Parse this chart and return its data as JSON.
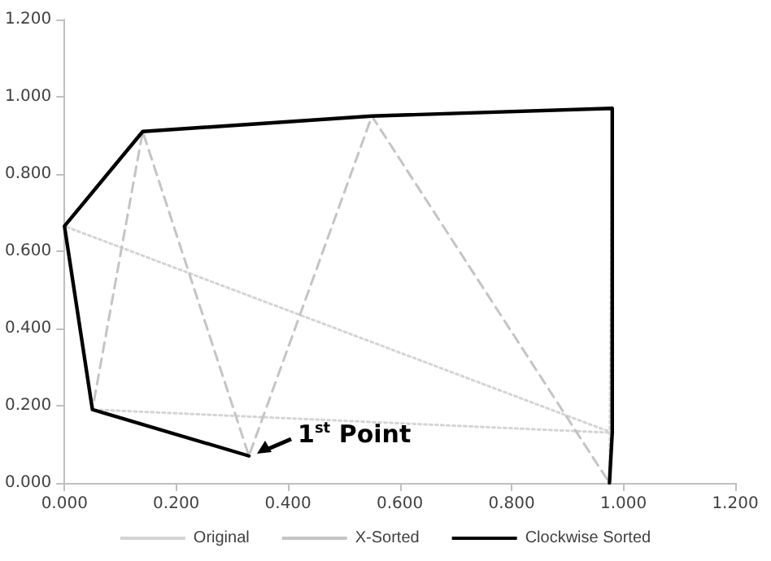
{
  "chart_data": {
    "type": "line",
    "marker": "none",
    "grid": false,
    "legend": "bottom",
    "xlim": [
      0,
      1.2
    ],
    "ylim": [
      0,
      1.2
    ],
    "xticks": [
      {
        "value": 0,
        "label": "0.000"
      },
      {
        "value": 0.2,
        "label": "0.200"
      },
      {
        "value": 0.4,
        "label": "0.400"
      },
      {
        "value": 0.6,
        "label": "0.600"
      },
      {
        "value": 0.8,
        "label": "0.800"
      },
      {
        "value": 1.0,
        "label": "1.000"
      },
      {
        "value": 1.2,
        "label": "1.200"
      }
    ],
    "yticks": [
      {
        "value": 0,
        "label": "0.000"
      },
      {
        "value": 0.2,
        "label": "0.200"
      },
      {
        "value": 0.4,
        "label": "0.400"
      },
      {
        "value": 0.6,
        "label": "0.600"
      },
      {
        "value": 0.8,
        "label": "0.800"
      },
      {
        "value": 1.0,
        "label": "1.000"
      },
      {
        "value": 1.2,
        "label": "1.200"
      }
    ],
    "series": [
      {
        "name": "Original",
        "color": "#d4d4d4",
        "line_style": "dotted",
        "x": [
          0.33,
          0.05,
          0.98,
          0.0,
          0.14,
          0.55,
          0.98,
          0.975
        ],
        "values": [
          0.07,
          0.19,
          0.13,
          0.665,
          0.91,
          0.95,
          0.97,
          0.0
        ]
      },
      {
        "name": "X-Sorted",
        "color": "#c4c4c4",
        "line_style": "dashed",
        "x": [
          0.0,
          0.05,
          0.14,
          0.33,
          0.55,
          0.975,
          0.98,
          0.98
        ],
        "values": [
          0.665,
          0.19,
          0.91,
          0.07,
          0.95,
          0.0,
          0.13,
          0.97
        ]
      },
      {
        "name": "Clockwise Sorted",
        "color": "#000000",
        "line_style": "solid",
        "x": [
          0.33,
          0.05,
          0.0,
          0.14,
          0.55,
          0.98,
          0.98,
          0.975
        ],
        "values": [
          0.07,
          0.19,
          0.665,
          0.91,
          0.95,
          0.97,
          0.13,
          0.0
        ]
      }
    ],
    "annotations": [
      {
        "text": "1$^{st}$ Point",
        "x": 0.33,
        "y": 0.07
      }
    ]
  }
}
